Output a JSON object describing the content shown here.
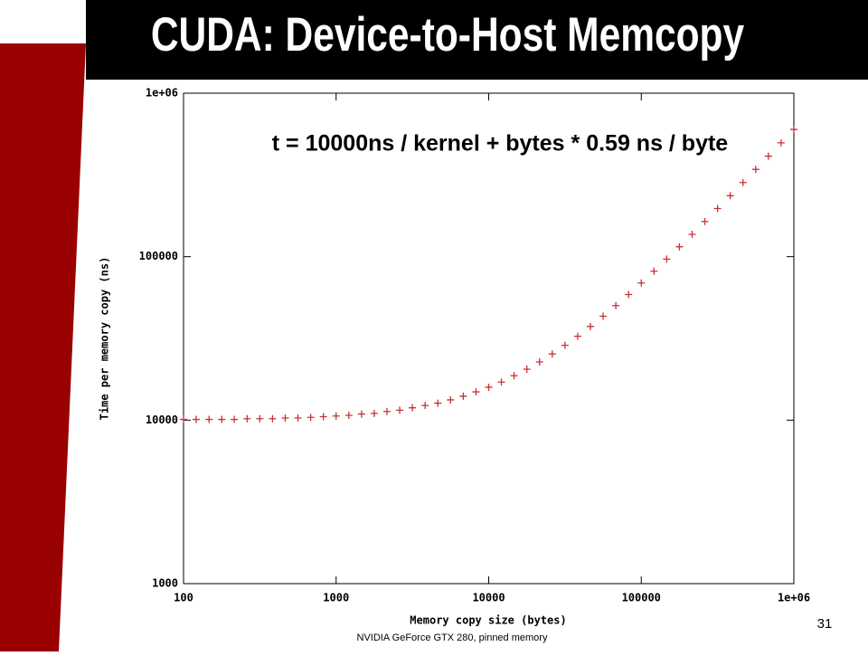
{
  "slide": {
    "title": "CUDA: Device-to-Host Memcopy",
    "caption": "NVIDIA GeForce GTX 280, pinned memory",
    "page_number": "31"
  },
  "chart_data": {
    "type": "scatter",
    "annotation": "t = 10000ns / kernel + bytes * 0.59 ns / byte",
    "xlabel": "Memory copy size (bytes)",
    "ylabel": "Time per memory copy (ns)",
    "log_x": true,
    "log_y": true,
    "color": "#c8303a",
    "xlim": [
      100,
      1000000
    ],
    "ylim": [
      1000,
      1000000
    ],
    "xticks": [
      100,
      1000,
      10000,
      100000,
      {
        "value": 1000000,
        "label": "1e+06"
      }
    ],
    "yticks": [
      1000,
      10000,
      100000,
      {
        "value": 1000000,
        "label": "1e+06"
      }
    ],
    "x": [
      100,
      121,
      147,
      178,
      215,
      261,
      316,
      383,
      464,
      562,
      681,
      825,
      1000,
      1212,
      1468,
      1778,
      2154,
      2610,
      3162,
      3831,
      4642,
      5623,
      6813,
      8254,
      10000,
      12115,
      14678,
      17783,
      21544,
      26102,
      31623,
      38312,
      46416,
      56234,
      68129,
      82540,
      100000,
      121153,
      146780,
      177828,
      215443,
      261016,
      316228,
      383119,
      464159,
      562341,
      681292,
      825404,
      1000000
    ],
    "values": [
      10100,
      10100,
      10100,
      10100,
      10100,
      10200,
      10200,
      10200,
      10300,
      10300,
      10400,
      10500,
      10600,
      10700,
      10900,
      11000,
      11300,
      11500,
      11900,
      12300,
      12700,
      13300,
      14000,
      14900,
      15900,
      17100,
      18700,
      20500,
      22700,
      25400,
      28700,
      32600,
      37400,
      43200,
      50200,
      58700,
      69000,
      81500,
      96600,
      115000,
      137000,
      164000,
      197000,
      236000,
      284000,
      342000,
      412000,
      497000,
      600000
    ]
  }
}
